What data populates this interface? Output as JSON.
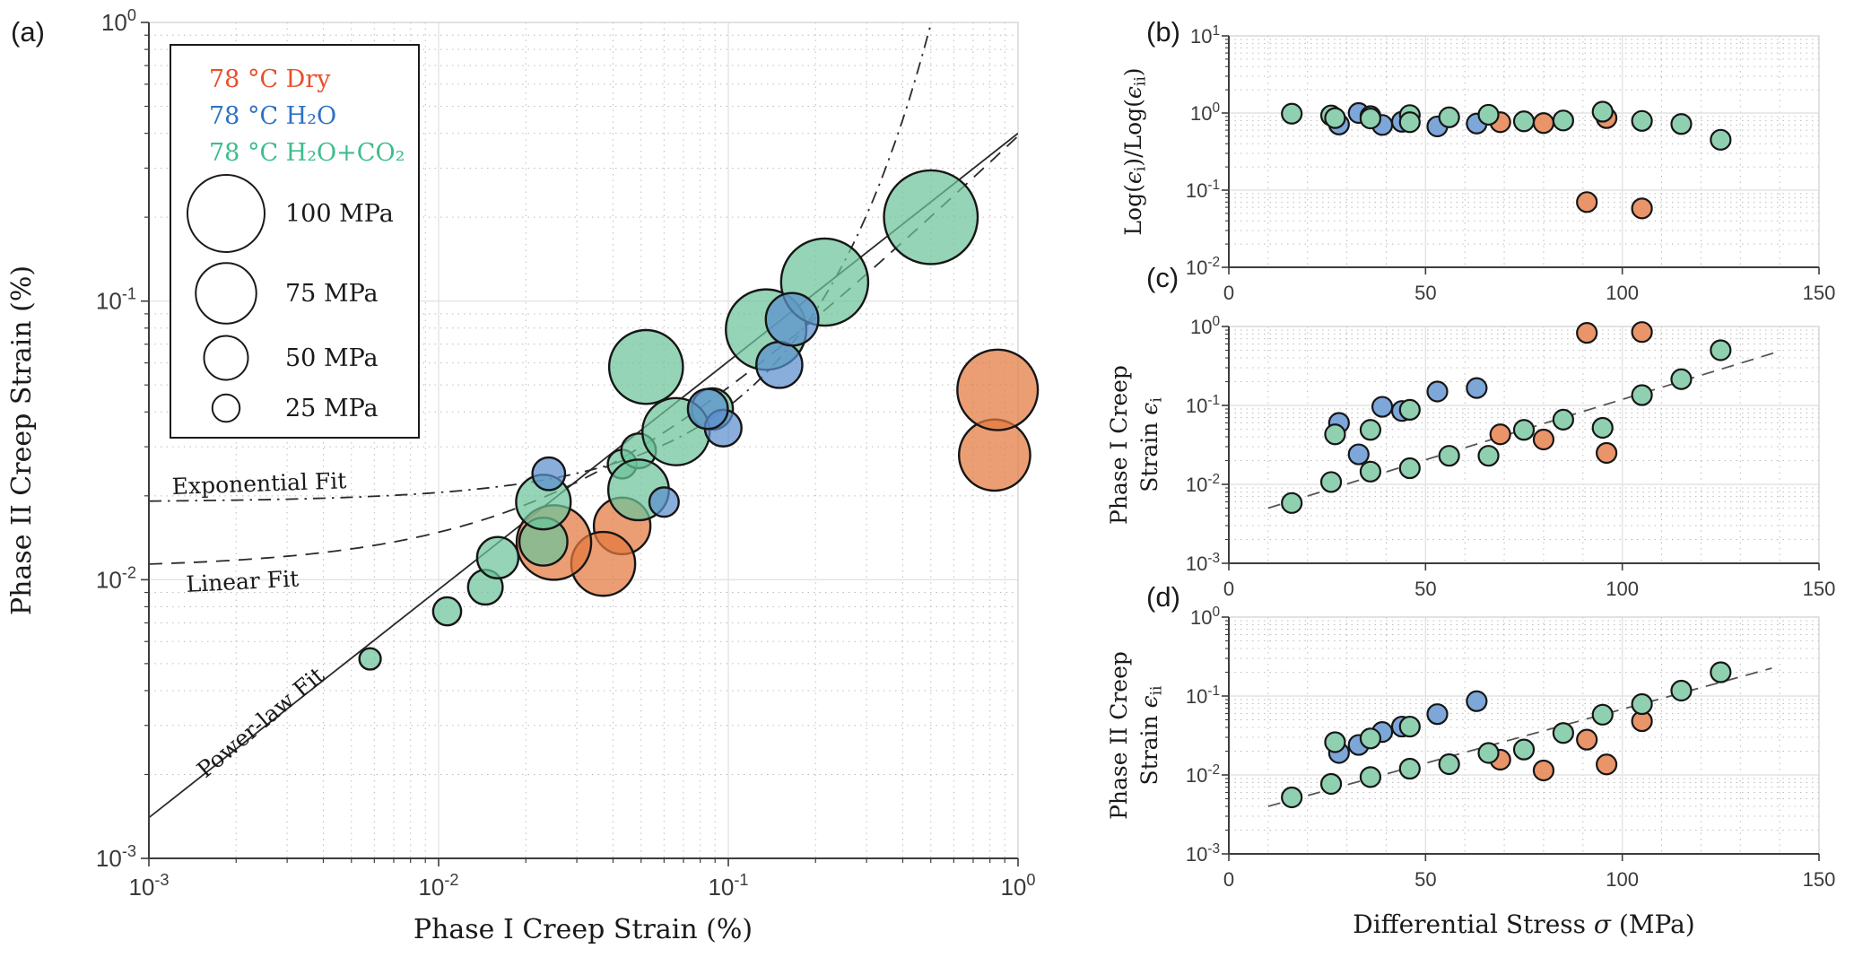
{
  "figure_title": "Creep strain phases bubble chart with stress dependence panels",
  "chart_data": {
    "type": "scatter",
    "colors": {
      "dry": {
        "bubble": "#e3793f",
        "point": "#ea9469",
        "text": "#e8502a"
      },
      "h2o": {
        "bubble": "#5b8fce",
        "point": "#7da6d9",
        "text": "#2d72c4"
      },
      "co2": {
        "bubble": "#6cc49a",
        "point": "#8fd0b0",
        "text": "#3cbd8d"
      },
      "edge": "#161616",
      "grid_major": "#e3e3e3",
      "grid_minor": "#bcbcbc",
      "axis": "#3d3d3d",
      "fit_line": "#2a2a2a",
      "trend_line": "#555555"
    },
    "series": [
      {
        "key": "dry",
        "name": "78 °C Dry",
        "points": [
          {
            "sigma_mpa": 69,
            "eps_i": 0.043,
            "eps_ii": 0.0156,
            "log_ratio": 0.76
          },
          {
            "sigma_mpa": 80,
            "eps_i": 0.037,
            "eps_ii": 0.0114,
            "log_ratio": 0.74
          },
          {
            "sigma_mpa": 91,
            "eps_i": 0.83,
            "eps_ii": 0.028,
            "log_ratio": 0.07
          },
          {
            "sigma_mpa": 96,
            "eps_i": 0.025,
            "eps_ii": 0.0136,
            "log_ratio": 0.86
          },
          {
            "sigma_mpa": 105,
            "eps_i": 0.85,
            "eps_ii": 0.048,
            "log_ratio": 0.058
          }
        ]
      },
      {
        "key": "co2",
        "name": "78 °C H₂O+CO₂",
        "points": [
          {
            "sigma_mpa": 16,
            "eps_i": 0.0058,
            "eps_ii": 0.0052,
            "log_ratio": 0.98
          },
          {
            "sigma_mpa": 26,
            "eps_i": 0.0107,
            "eps_ii": 0.0077,
            "log_ratio": 0.93
          },
          {
            "sigma_mpa": 27,
            "eps_i": 0.043,
            "eps_ii": 0.026,
            "log_ratio": 0.86
          },
          {
            "sigma_mpa": 36,
            "eps_i": 0.0145,
            "eps_ii": 0.0094,
            "log_ratio": 0.91
          },
          {
            "sigma_mpa": 36,
            "eps_i": 0.049,
            "eps_ii": 0.029,
            "log_ratio": 0.85
          },
          {
            "sigma_mpa": 46,
            "eps_i": 0.016,
            "eps_ii": 0.012,
            "log_ratio": 0.94
          },
          {
            "sigma_mpa": 46,
            "eps_i": 0.088,
            "eps_ii": 0.041,
            "log_ratio": 0.76
          },
          {
            "sigma_mpa": 56,
            "eps_i": 0.023,
            "eps_ii": 0.0137,
            "log_ratio": 0.88
          },
          {
            "sigma_mpa": 66,
            "eps_i": 0.023,
            "eps_ii": 0.019,
            "log_ratio": 0.95
          },
          {
            "sigma_mpa": 75,
            "eps_i": 0.049,
            "eps_ii": 0.021,
            "log_ratio": 0.78
          },
          {
            "sigma_mpa": 85,
            "eps_i": 0.066,
            "eps_ii": 0.034,
            "log_ratio": 0.8
          },
          {
            "sigma_mpa": 95,
            "eps_i": 0.052,
            "eps_ii": 0.058,
            "log_ratio": 1.04
          },
          {
            "sigma_mpa": 105,
            "eps_i": 0.135,
            "eps_ii": 0.079,
            "log_ratio": 0.79
          },
          {
            "sigma_mpa": 115,
            "eps_i": 0.215,
            "eps_ii": 0.117,
            "log_ratio": 0.72
          },
          {
            "sigma_mpa": 125,
            "eps_i": 0.5,
            "eps_ii": 0.2,
            "log_ratio": 0.45
          }
        ]
      },
      {
        "key": "h2o",
        "name": "78 °C H₂O",
        "points": [
          {
            "sigma_mpa": 28,
            "eps_i": 0.06,
            "eps_ii": 0.019,
            "log_ratio": 0.71
          },
          {
            "sigma_mpa": 33,
            "eps_i": 0.024,
            "eps_ii": 0.024,
            "log_ratio": 1.0
          },
          {
            "sigma_mpa": 39,
            "eps_i": 0.096,
            "eps_ii": 0.035,
            "log_ratio": 0.7
          },
          {
            "sigma_mpa": 44,
            "eps_i": 0.085,
            "eps_ii": 0.041,
            "log_ratio": 0.77
          },
          {
            "sigma_mpa": 53,
            "eps_i": 0.15,
            "eps_ii": 0.059,
            "log_ratio": 0.67
          },
          {
            "sigma_mpa": 63,
            "eps_i": 0.166,
            "eps_ii": 0.086,
            "log_ratio": 0.73
          }
        ]
      }
    ],
    "panels": {
      "a": {
        "label": "(a)",
        "xlabel": "Phase I Creep Strain (%)",
        "ylabel": "Phase II Creep Strain (%)",
        "xlim_exp": [
          -3,
          0
        ],
        "ylim_exp": [
          -3,
          0
        ],
        "x_ticks_exp": [
          -3,
          -2,
          -1,
          0
        ],
        "y_ticks_exp": [
          0,
          -1,
          -2,
          -3
        ],
        "legend": {
          "size_entries": [
            {
              "label": "100 MPa",
              "mpa": 100
            },
            {
              "label": "75  MPa",
              "mpa": 75
            },
            {
              "label": "50  MPa",
              "mpa": 50
            },
            {
              "label": "25  MPa",
              "mpa": 25
            }
          ]
        },
        "fits": {
          "power": {
            "label": "Power-law Fit",
            "style": "solid",
            "x0": 0.001,
            "y0": 0.0014,
            "x1": 1.0,
            "y1": 0.4
          },
          "linear": {
            "label": "Linear Fit",
            "style": "dashed",
            "intercept": 0.011,
            "slope": 0.38
          },
          "exponential": {
            "label": "Exponential Fit",
            "style": "dashdot",
            "a": 0.019,
            "k": 7.9
          }
        }
      },
      "b": {
        "label": "(b)",
        "ylabel_segments": [
          {
            "t": "Log("
          },
          {
            "t": "ϵ",
            "i": true
          },
          {
            "t": "i",
            "sub": true
          },
          {
            "t": ")/Log("
          },
          {
            "t": "ϵ",
            "i": true
          },
          {
            "t": "ii",
            "sub": true
          },
          {
            "t": ")"
          }
        ],
        "value_field": "log_ratio",
        "ylim_exp": [
          -2,
          1
        ],
        "y_ticks_exp": [
          1,
          0,
          -1,
          -2
        ],
        "x_ticks": [
          0,
          50,
          100,
          150
        ]
      },
      "c": {
        "label": "(c)",
        "ylabel_line1": "Phase I Creep",
        "ylabel_line2_segments": [
          {
            "t": "Strain "
          },
          {
            "t": "ϵ",
            "i": true
          },
          {
            "t": "i",
            "sub": true
          }
        ],
        "value_field": "eps_i",
        "ylim_exp": [
          -3,
          0
        ],
        "y_ticks_exp": [
          0,
          -1,
          -2,
          -3
        ],
        "x_ticks": [
          0,
          50,
          100,
          150
        ],
        "trend": {
          "x0": 10,
          "y0": 0.005,
          "x1": 139,
          "y1": 0.47
        }
      },
      "d": {
        "label": "(d)",
        "ylabel_line1": "Phase II Creep",
        "ylabel_line2_segments": [
          {
            "t": "Strain "
          },
          {
            "t": "ϵ",
            "i": true
          },
          {
            "t": "ii",
            "sub": true
          }
        ],
        "xlabel_segments": [
          {
            "t": "Differential Stress "
          },
          {
            "t": "σ",
            "i": true
          },
          {
            "t": " (MPa)"
          }
        ],
        "value_field": "eps_ii",
        "ylim_exp": [
          -3,
          0
        ],
        "y_ticks_exp": [
          0,
          -1,
          -2,
          -3
        ],
        "x_ticks": [
          0,
          50,
          100,
          150
        ],
        "trend": {
          "x0": 10,
          "y0": 0.004,
          "x1": 138,
          "y1": 0.225
        }
      }
    }
  }
}
